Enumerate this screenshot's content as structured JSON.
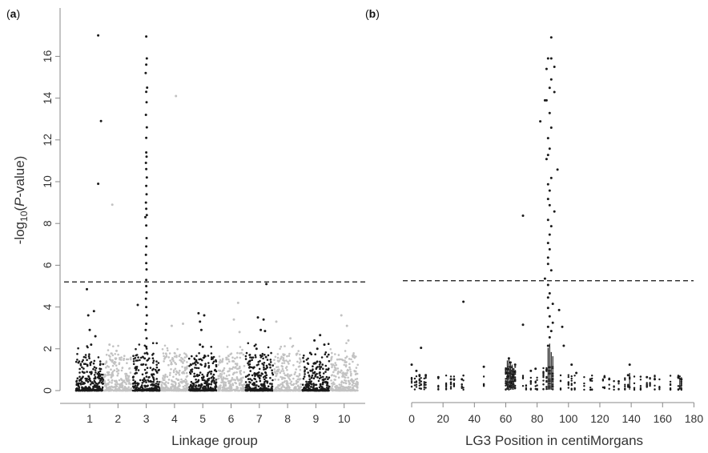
{
  "chart_data": [
    {
      "panel": "a",
      "type": "scatter",
      "xlabel": "Linkage group",
      "ylabel": "-log10(P-value)",
      "ylim": [
        0,
        17.5
      ],
      "yticks": [
        0,
        2,
        4,
        6,
        8,
        10,
        12,
        14,
        16
      ],
      "categories": [
        "1",
        "2",
        "3",
        "4",
        "5",
        "6",
        "7",
        "8",
        "9",
        "10"
      ],
      "threshold": 5.2,
      "colors": {
        "odd_groups": "#1a1a1a",
        "even_groups": "#c2c2c2",
        "threshold": "#111111"
      },
      "series": [
        {
          "group": 1,
          "points": [
            [
              1.3,
              17.0
            ],
            [
              1.4,
              12.9
            ],
            [
              1.3,
              9.9
            ],
            [
              0.9,
              4.85
            ],
            [
              1.15,
              3.8
            ],
            [
              0.95,
              3.6
            ],
            [
              1.0,
              2.9
            ],
            [
              1.2,
              2.6
            ],
            [
              1.05,
              2.2
            ]
          ]
        },
        {
          "group": 2,
          "points": [
            [
              1.8,
              8.9
            ],
            [
              1.7,
              2.2
            ],
            [
              1.95,
              1.9
            ]
          ]
        },
        {
          "group": 3,
          "points": [
            [
              3.0,
              16.95
            ],
            [
              3.02,
              15.9
            ],
            [
              3.0,
              15.6
            ],
            [
              2.98,
              15.2
            ],
            [
              3.03,
              14.5
            ],
            [
              3.0,
              14.3
            ],
            [
              3.01,
              13.8
            ],
            [
              2.99,
              13.2
            ],
            [
              3.02,
              12.6
            ],
            [
              3.0,
              12.1
            ],
            [
              3.0,
              11.4
            ],
            [
              3.01,
              11.2
            ],
            [
              2.99,
              10.9
            ],
            [
              3.0,
              10.6
            ],
            [
              3.02,
              10.2
            ],
            [
              3.0,
              9.8
            ],
            [
              3.01,
              9.4
            ],
            [
              2.99,
              9.0
            ],
            [
              3.0,
              8.7
            ],
            [
              3.02,
              8.4
            ],
            [
              2.97,
              8.3
            ],
            [
              3.0,
              7.9
            ],
            [
              3.01,
              7.3
            ],
            [
              3.0,
              6.9
            ],
            [
              2.99,
              6.5
            ],
            [
              3.0,
              6.1
            ],
            [
              3.01,
              5.8
            ],
            [
              3.0,
              5.3
            ],
            [
              3.0,
              5.0
            ],
            [
              3.01,
              4.7
            ],
            [
              2.99,
              4.4
            ],
            [
              3.0,
              4.0
            ],
            [
              2.7,
              4.1
            ],
            [
              3.02,
              3.6
            ],
            [
              3.0,
              3.2
            ],
            [
              2.98,
              2.9
            ],
            [
              3.01,
              2.5
            ],
            [
              3.0,
              2.1
            ],
            [
              3.02,
              1.8
            ]
          ]
        },
        {
          "group": 4,
          "points": [
            [
              4.05,
              14.1
            ],
            [
              3.9,
              3.1
            ],
            [
              4.3,
              3.2
            ]
          ]
        },
        {
          "group": 5,
          "points": [
            [
              4.85,
              3.7
            ],
            [
              5.05,
              3.6
            ],
            [
              4.9,
              3.3
            ],
            [
              4.95,
              2.9
            ],
            [
              4.9,
              2.2
            ],
            [
              5.0,
              2.1
            ]
          ]
        },
        {
          "group": 6,
          "points": [
            [
              6.25,
              4.2
            ],
            [
              6.1,
              3.4
            ],
            [
              6.3,
              2.8
            ]
          ]
        },
        {
          "group": 7,
          "points": [
            [
              7.25,
              5.1
            ],
            [
              6.95,
              3.5
            ],
            [
              7.15,
              3.4
            ],
            [
              7.05,
              2.9
            ],
            [
              7.2,
              2.85
            ],
            [
              6.9,
              2.0
            ]
          ]
        },
        {
          "group": 8,
          "points": [
            [
              7.6,
              3.3
            ],
            [
              8.1,
              2.5
            ]
          ]
        },
        {
          "group": 9,
          "points": [
            [
              9.15,
              2.65
            ],
            [
              8.95,
              2.4
            ],
            [
              9.3,
              2.2
            ],
            [
              9.05,
              2.0
            ],
            [
              8.8,
              1.8
            ]
          ]
        },
        {
          "group": 10,
          "points": [
            [
              9.9,
              3.6
            ],
            [
              10.1,
              3.1
            ],
            [
              10.15,
              2.4
            ]
          ]
        }
      ]
    },
    {
      "panel": "b",
      "type": "scatter",
      "xlabel": "LG3 Position in centiMorgans",
      "ylabel": "",
      "xlim": [
        0,
        180
      ],
      "ylim": [
        0,
        17.5
      ],
      "xticks": [
        0,
        20,
        40,
        60,
        80,
        100,
        120,
        140,
        160,
        180
      ],
      "threshold": 5.2,
      "colors": {
        "points": "#1a1a1a",
        "threshold": "#111111"
      },
      "points": [
        [
          89,
          16.8
        ],
        [
          87,
          15.8
        ],
        [
          89,
          15.8
        ],
        [
          91,
          15.4
        ],
        [
          86,
          15.3
        ],
        [
          89,
          14.8
        ],
        [
          88,
          14.4
        ],
        [
          91,
          14.2
        ],
        [
          86,
          13.8
        ],
        [
          85,
          13.8
        ],
        [
          88,
          13.2
        ],
        [
          82,
          12.8
        ],
        [
          89,
          12.5
        ],
        [
          87,
          12.0
        ],
        [
          88,
          11.5
        ],
        [
          87,
          11.2
        ],
        [
          86,
          11.0
        ],
        [
          93,
          10.5
        ],
        [
          89,
          10.1
        ],
        [
          87,
          9.8
        ],
        [
          88,
          9.5
        ],
        [
          87,
          9.1
        ],
        [
          88,
          8.8
        ],
        [
          91,
          8.5
        ],
        [
          71,
          8.3
        ],
        [
          87,
          8.1
        ],
        [
          89,
          7.8
        ],
        [
          88,
          7.4
        ],
        [
          87,
          7.0
        ],
        [
          88,
          6.7
        ],
        [
          87,
          6.3
        ],
        [
          87,
          6.0
        ],
        [
          89,
          5.7
        ],
        [
          85,
          5.3
        ],
        [
          87,
          5.0
        ],
        [
          88,
          4.6
        ],
        [
          87,
          4.4
        ],
        [
          90,
          4.1
        ],
        [
          87,
          3.9
        ],
        [
          94,
          3.8
        ],
        [
          88,
          3.5
        ],
        [
          90,
          3.2
        ],
        [
          87,
          3.0
        ],
        [
          71,
          3.1
        ],
        [
          96,
          3.0
        ],
        [
          89,
          2.8
        ],
        [
          88,
          2.5
        ],
        [
          87,
          2.1
        ],
        [
          97,
          2.1
        ],
        [
          33,
          4.2
        ],
        [
          6,
          2.0
        ],
        [
          0,
          1.2
        ],
        [
          3,
          0.9
        ],
        [
          5,
          0.7
        ],
        [
          9,
          0.7
        ],
        [
          17,
          0.6
        ],
        [
          25,
          0.5
        ],
        [
          27,
          0.5
        ],
        [
          32,
          0.5
        ],
        [
          46,
          1.1
        ],
        [
          62,
          1.5
        ],
        [
          63,
          1.3
        ],
        [
          66,
          1.2
        ],
        [
          76,
          0.9
        ],
        [
          79,
          1.0
        ],
        [
          102,
          1.2
        ],
        [
          105,
          0.8
        ],
        [
          114,
          0.5
        ],
        [
          123,
          0.6
        ],
        [
          126,
          0.5
        ],
        [
          132,
          0.4
        ],
        [
          138,
          0.7
        ],
        [
          139,
          1.2
        ],
        [
          150,
          0.6
        ],
        [
          155,
          0.5
        ],
        [
          170,
          0.6
        ],
        [
          172,
          0.5
        ]
      ]
    }
  ],
  "panels": {
    "a": {
      "label_open": "(",
      "label_letter": "a",
      "label_close": ")"
    },
    "b": {
      "label_open": "(",
      "label_letter": "b",
      "label_close": ")"
    }
  },
  "axes": {
    "ylabel_prefix": "-log",
    "ylabel_sub": "10",
    "ylabel_open": "(",
    "ylabel_italic": "P",
    "ylabel_suffix": "-value)"
  }
}
